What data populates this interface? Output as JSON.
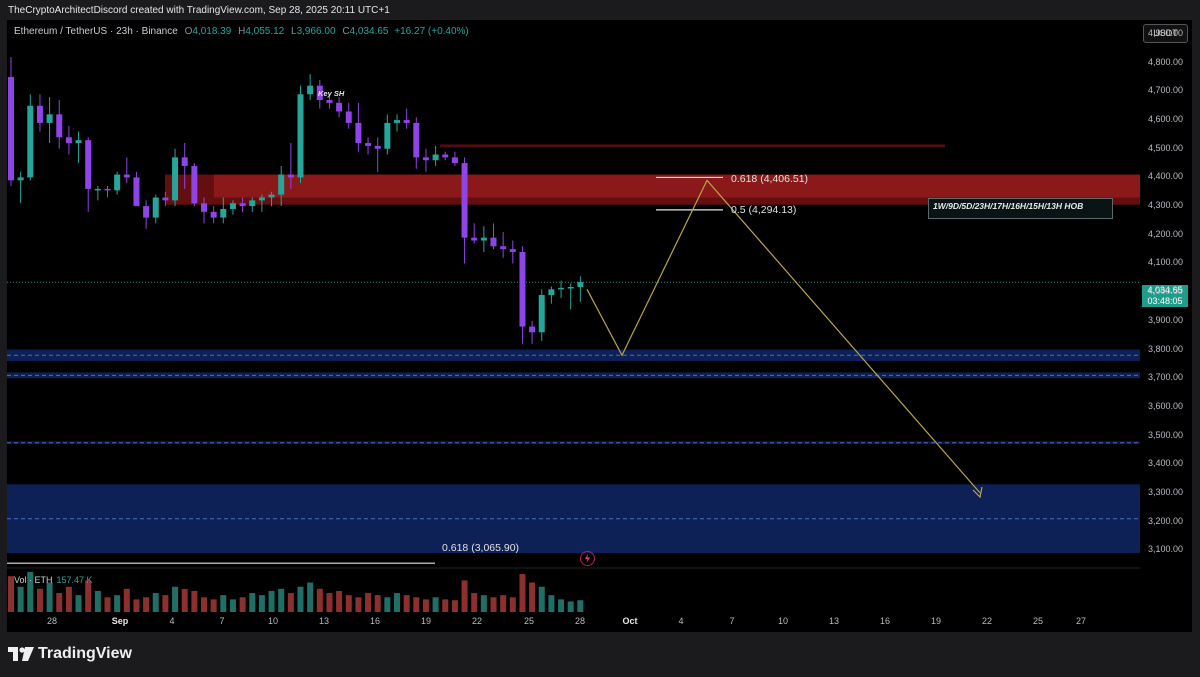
{
  "header": {
    "credit": "TheCryptoArchitectDiscord created with TradingView.com, Sep 28, 2025 20:11 UTC+1"
  },
  "legend": {
    "symbol": "Ethereum / TetherUS · 23h · Binance",
    "o_label": "O",
    "o_value": "4,018.39",
    "h_label": "H",
    "h_value": "4,055.12",
    "l_label": "L",
    "l_value": "3,966.00",
    "c_label": "C",
    "c_value": "4,034.65",
    "change": "+16.27 (+0.40%)"
  },
  "currency_button": "USDT",
  "price_tag": {
    "price": "4,034.65",
    "countdown": "03:48:05"
  },
  "annotations": {
    "key_sh": "Key SH",
    "hob_label": "1W/9D/5D/23H/17H/16H/15H/13H HOB",
    "fib_618_top": "0.618 (4,406.51)",
    "fib_05": "0.5 (4,294.13)",
    "fib_618_bottom": "0.618 (3,065.90)"
  },
  "volume": {
    "label": "Vol · ETH",
    "value": "157.47 K"
  },
  "colors": {
    "up": "#26a69a",
    "down": "#ef5350",
    "candle_down_body": "#8e44e6",
    "supply_zone": "#b71c1c",
    "demand_zone": "#1a3d9e",
    "projection": "#b8a44a"
  },
  "footer": {
    "brand": "TradingView"
  },
  "chart_data": {
    "type": "candlestick",
    "title": "Ethereum / TetherUS · 23h · Binance",
    "y_axis": {
      "ticks": [
        "4,900.00",
        "4,800.00",
        "4,700.00",
        "4,600.00",
        "4,500.00",
        "4,400.00",
        "4,300.00",
        "4,200.00",
        "4,100.00",
        "4,000.00",
        "3,900.00",
        "3,800.00",
        "3,700.00",
        "3,600.00",
        "3,500.00",
        "3,400.00",
        "3,300.00",
        "3,200.00",
        "3,100.00"
      ],
      "range": [
        3080,
        4935
      ],
      "side": "right"
    },
    "x_axis": {
      "ticks": [
        {
          "label": "28",
          "bold": false
        },
        {
          "label": "Sep",
          "bold": true
        },
        {
          "label": "4",
          "bold": false
        },
        {
          "label": "7",
          "bold": false
        },
        {
          "label": "10",
          "bold": false
        },
        {
          "label": "13",
          "bold": false
        },
        {
          "label": "16",
          "bold": false
        },
        {
          "label": "19",
          "bold": false
        },
        {
          "label": "22",
          "bold": false
        },
        {
          "label": "25",
          "bold": false
        },
        {
          "label": "28",
          "bold": false
        },
        {
          "label": "Oct",
          "bold": true
        },
        {
          "label": "4",
          "bold": false
        },
        {
          "label": "7",
          "bold": false
        },
        {
          "label": "10",
          "bold": false
        },
        {
          "label": "13",
          "bold": false
        },
        {
          "label": "16",
          "bold": false
        },
        {
          "label": "19",
          "bold": false
        },
        {
          "label": "22",
          "bold": false
        },
        {
          "label": "25",
          "bold": false
        },
        {
          "label": "27",
          "bold": false
        }
      ]
    },
    "candles": [
      {
        "o": 4750,
        "h": 4820,
        "l": 4370,
        "c": 4390
      },
      {
        "o": 4390,
        "h": 4420,
        "l": 4310,
        "c": 4400
      },
      {
        "o": 4400,
        "h": 4690,
        "l": 4390,
        "c": 4650
      },
      {
        "o": 4650,
        "h": 4690,
        "l": 4560,
        "c": 4590
      },
      {
        "o": 4590,
        "h": 4680,
        "l": 4520,
        "c": 4620
      },
      {
        "o": 4620,
        "h": 4670,
        "l": 4500,
        "c": 4540
      },
      {
        "o": 4540,
        "h": 4580,
        "l": 4480,
        "c": 4520
      },
      {
        "o": 4520,
        "h": 4560,
        "l": 4450,
        "c": 4530
      },
      {
        "o": 4530,
        "h": 4540,
        "l": 4280,
        "c": 4360
      },
      {
        "o": 4360,
        "h": 4370,
        "l": 4320,
        "c": 4360
      },
      {
        "o": 4360,
        "h": 4370,
        "l": 4330,
        "c": 4355
      },
      {
        "o": 4355,
        "h": 4420,
        "l": 4340,
        "c": 4410
      },
      {
        "o": 4410,
        "h": 4470,
        "l": 4380,
        "c": 4400
      },
      {
        "o": 4400,
        "h": 4420,
        "l": 4300,
        "c": 4300
      },
      {
        "o": 4300,
        "h": 4320,
        "l": 4220,
        "c": 4260
      },
      {
        "o": 4260,
        "h": 4340,
        "l": 4240,
        "c": 4330
      },
      {
        "o": 4330,
        "h": 4350,
        "l": 4300,
        "c": 4320
      },
      {
        "o": 4320,
        "h": 4500,
        "l": 4300,
        "c": 4470
      },
      {
        "o": 4470,
        "h": 4520,
        "l": 4360,
        "c": 4440
      },
      {
        "o": 4440,
        "h": 4450,
        "l": 4300,
        "c": 4310
      },
      {
        "o": 4310,
        "h": 4330,
        "l": 4240,
        "c": 4280
      },
      {
        "o": 4280,
        "h": 4300,
        "l": 4240,
        "c": 4260
      },
      {
        "o": 4260,
        "h": 4330,
        "l": 4240,
        "c": 4290
      },
      {
        "o": 4290,
        "h": 4320,
        "l": 4270,
        "c": 4310
      },
      {
        "o": 4310,
        "h": 4330,
        "l": 4280,
        "c": 4300
      },
      {
        "o": 4300,
        "h": 4330,
        "l": 4280,
        "c": 4320
      },
      {
        "o": 4320,
        "h": 4340,
        "l": 4280,
        "c": 4330
      },
      {
        "o": 4330,
        "h": 4350,
        "l": 4300,
        "c": 4340
      },
      {
        "o": 4340,
        "h": 4440,
        "l": 4300,
        "c": 4410
      },
      {
        "o": 4410,
        "h": 4520,
        "l": 4360,
        "c": 4400
      },
      {
        "o": 4400,
        "h": 4720,
        "l": 4380,
        "c": 4690
      },
      {
        "o": 4690,
        "h": 4760,
        "l": 4670,
        "c": 4720
      },
      {
        "o": 4720,
        "h": 4740,
        "l": 4640,
        "c": 4670
      },
      {
        "o": 4670,
        "h": 4690,
        "l": 4640,
        "c": 4660
      },
      {
        "o": 4660,
        "h": 4680,
        "l": 4610,
        "c": 4630
      },
      {
        "o": 4630,
        "h": 4660,
        "l": 4570,
        "c": 4590
      },
      {
        "o": 4590,
        "h": 4660,
        "l": 4490,
        "c": 4520
      },
      {
        "o": 4520,
        "h": 4540,
        "l": 4480,
        "c": 4510
      },
      {
        "o": 4510,
        "h": 4540,
        "l": 4420,
        "c": 4500
      },
      {
        "o": 4500,
        "h": 4620,
        "l": 4480,
        "c": 4590
      },
      {
        "o": 4590,
        "h": 4620,
        "l": 4560,
        "c": 4600
      },
      {
        "o": 4600,
        "h": 4640,
        "l": 4570,
        "c": 4590
      },
      {
        "o": 4590,
        "h": 4610,
        "l": 4430,
        "c": 4470
      },
      {
        "o": 4470,
        "h": 4500,
        "l": 4420,
        "c": 4460
      },
      {
        "o": 4460,
        "h": 4510,
        "l": 4440,
        "c": 4480
      },
      {
        "o": 4480,
        "h": 4490,
        "l": 4460,
        "c": 4470
      },
      {
        "o": 4470,
        "h": 4490,
        "l": 4440,
        "c": 4450
      },
      {
        "o": 4450,
        "h": 4470,
        "l": 4100,
        "c": 4190
      },
      {
        "o": 4190,
        "h": 4240,
        "l": 4170,
        "c": 4180
      },
      {
        "o": 4180,
        "h": 4230,
        "l": 4140,
        "c": 4190
      },
      {
        "o": 4190,
        "h": 4240,
        "l": 4150,
        "c": 4160
      },
      {
        "o": 4160,
        "h": 4210,
        "l": 4120,
        "c": 4150
      },
      {
        "o": 4150,
        "h": 4180,
        "l": 4100,
        "c": 4140
      },
      {
        "o": 4140,
        "h": 4160,
        "l": 3820,
        "c": 3880
      },
      {
        "o": 3880,
        "h": 3900,
        "l": 3820,
        "c": 3860
      },
      {
        "o": 3860,
        "h": 4010,
        "l": 3830,
        "c": 3990
      },
      {
        "o": 3990,
        "h": 4020,
        "l": 3960,
        "c": 4010
      },
      {
        "o": 4010,
        "h": 4040,
        "l": 3980,
        "c": 4015
      },
      {
        "o": 4015,
        "h": 4030,
        "l": 3940,
        "c": 4018
      },
      {
        "o": 4018,
        "h": 4055,
        "l": 3966,
        "c": 4035
      }
    ],
    "volume_series": [
      85,
      60,
      95,
      55,
      70,
      45,
      60,
      40,
      75,
      50,
      35,
      40,
      55,
      30,
      35,
      45,
      40,
      60,
      55,
      50,
      35,
      30,
      40,
      30,
      35,
      45,
      40,
      50,
      55,
      45,
      60,
      70,
      55,
      45,
      50,
      40,
      35,
      45,
      40,
      35,
      45,
      40,
      35,
      30,
      35,
      30,
      28,
      75,
      45,
      40,
      35,
      40,
      35,
      90,
      70,
      60,
      40,
      30,
      25,
      28
    ],
    "zones": [
      {
        "type": "supply",
        "from": 4305,
        "to": 4410,
        "label": "1W/9D/5D/23H/17H/16H/15H/13H HOB"
      },
      {
        "type": "supply-line",
        "from": 4505,
        "to": 4515
      },
      {
        "type": "demand",
        "from": 3760,
        "to": 3800
      },
      {
        "type": "demand",
        "from": 3700,
        "to": 3720
      },
      {
        "type": "demand-line",
        "from": 3470,
        "to": 3480
      },
      {
        "type": "demand",
        "from": 3090,
        "to": 3330
      }
    ],
    "fib_levels": [
      {
        "label": "0.618 (4,406.51)",
        "price": 4406.51
      },
      {
        "label": "0.5 (4,294.13)",
        "price": 4294.13
      },
      {
        "label": "0.618 (3,065.90)",
        "price": 3065.9
      }
    ],
    "projection_path": [
      {
        "price": 4010
      },
      {
        "price": 3780
      },
      {
        "price": 4390
      },
      {
        "price": 3300
      }
    ],
    "last_price": 4034.65
  }
}
